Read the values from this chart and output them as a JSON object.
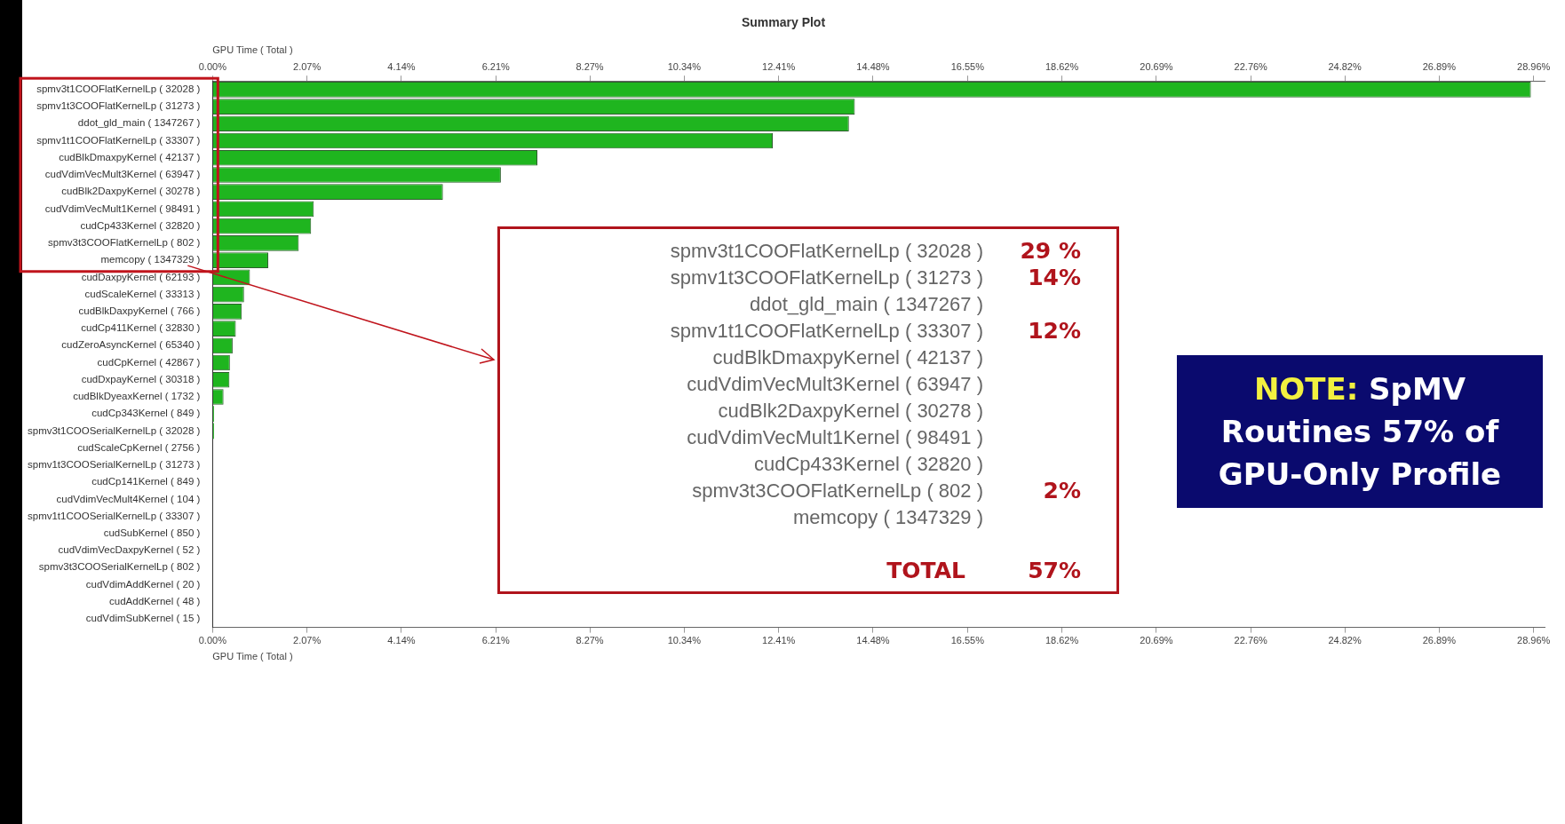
{
  "chart_data": {
    "type": "bar",
    "orientation": "horizontal",
    "title": "Summary Plot",
    "xlabel": "GPU Time ( Total )",
    "x2label": "GPU Time ( Total )",
    "categories": [
      "spmv3t1COOFlatKernelLp ( 32028 )",
      "spmv1t3COOFlatKernelLp ( 31273 )",
      "ddot_gld_main ( 1347267 )",
      "spmv1t1COOFlatKernelLp ( 33307 )",
      "cudBlkDmaxpyKernel ( 42137 )",
      "cudVdimVecMult3Kernel ( 63947 )",
      "cudBlk2DaxpyKernel ( 30278 )",
      "cudVdimVecMult1Kernel ( 98491 )",
      "cudCp433Kernel ( 32820 )",
      "spmv3t3COOFlatKernelLp ( 802 )",
      "memcopy ( 1347329 )",
      "cudDaxpyKernel ( 62193 )",
      "cudScaleKernel ( 33313 )",
      "cudBlkDaxpyKernel ( 766 )",
      "cudCp411Kernel ( 32830 )",
      "cudZeroAsyncKernel ( 65340 )",
      "cudCpKernel ( 42867 )",
      "cudDxpayKernel ( 30318 )",
      "cudBlkDyeaxKernel ( 1732 )",
      "cudCp343Kernel ( 849 )",
      "spmv3t1COOSerialKernelLp ( 32028 )",
      "cudScaleCpKernel ( 2756 )",
      "spmv1t3COOSerialKernelLp ( 31273 )",
      "cudCp141Kernel ( 849 )",
      "cudVdimVecMult4Kernel ( 104 )",
      "spmv1t1COOSerialKernelLp ( 33307 )",
      "cudSubKernel ( 850 )",
      "cudVdimVecDaxpyKernel ( 52 )",
      "spmv3t3COOSerialKernelLp ( 802 )",
      "cudVdimAddKernel ( 20 )",
      "cudAddKernel ( 48 )",
      "cudVdimSubKernel ( 15 )"
    ],
    "values": [
      28.9,
      14.08,
      13.95,
      12.28,
      7.12,
      6.32,
      5.05,
      2.22,
      2.16,
      1.89,
      1.22,
      0.82,
      0.69,
      0.64,
      0.51,
      0.44,
      0.38,
      0.37,
      0.24,
      0.03,
      0.03,
      0,
      0,
      0,
      0,
      0,
      0,
      0,
      0,
      0,
      0,
      0
    ],
    "color": "#1fb51f",
    "xlim": [
      0,
      29.2
    ],
    "xticks": [
      {
        "value": 0,
        "label": "0.00%"
      },
      {
        "value": 2.07,
        "label": "2.07%"
      },
      {
        "value": 4.14,
        "label": "4.14%"
      },
      {
        "value": 6.21,
        "label": "6.21%"
      },
      {
        "value": 8.27,
        "label": "8.27%"
      },
      {
        "value": 10.34,
        "label": "10.34%"
      },
      {
        "value": 12.41,
        "label": "12.41%"
      },
      {
        "value": 14.48,
        "label": "14.48%"
      },
      {
        "value": 16.55,
        "label": "16.55%"
      },
      {
        "value": 18.62,
        "label": "18.62%"
      },
      {
        "value": 20.69,
        "label": "20.69%"
      },
      {
        "value": 22.76,
        "label": "22.76%"
      },
      {
        "value": 24.82,
        "label": "24.82%"
      },
      {
        "value": 26.89,
        "label": "26.89%"
      },
      {
        "value": 28.96,
        "label": "28.96%"
      }
    ],
    "x2lim": [
      0,
      29.2
    ],
    "x2ticks": [
      {
        "value": 0,
        "label": "0.00%"
      },
      {
        "value": 2.07,
        "label": "2.07%"
      },
      {
        "value": 4.14,
        "label": "4.14%"
      },
      {
        "value": 6.21,
        "label": "6.21%"
      },
      {
        "value": 8.27,
        "label": "8.27%"
      },
      {
        "value": 10.34,
        "label": "10.34%"
      },
      {
        "value": 12.41,
        "label": "12.41%"
      },
      {
        "value": 14.48,
        "label": "14.48%"
      },
      {
        "value": 16.55,
        "label": "16.55%"
      },
      {
        "value": 18.62,
        "label": "18.62%"
      },
      {
        "value": 20.69,
        "label": "20.69%"
      },
      {
        "value": 22.76,
        "label": "22.76%"
      },
      {
        "value": 24.82,
        "label": "24.82%"
      },
      {
        "value": 26.89,
        "label": "26.89%"
      },
      {
        "value": 28.96,
        "label": "28.96%"
      }
    ],
    "annotations": [
      "spmv3t1COOFlatKernelLp ( 32028 )",
      "29 %",
      "spmv1t3COOFlatKernelLp ( 31273 )",
      "14%",
      "ddot_gld_main ( 1347267 )",
      "spmv1t1COOFlatKernelLp ( 33307 )",
      "12%",
      "cudBlkDmaxpyKernel ( 42137 )",
      "cudVdimVecMult3Kernel ( 63947 )",
      "cudBlk2DaxpyKernel ( 30278 )",
      "cudVdimVecMult1Kernel ( 98491 )",
      "cudCp433Kernel ( 32820 )",
      "spmv3t3COOFlatKernelLp ( 802 )",
      "2%",
      "memcopy ( 1347329 )",
      "TOTAL",
      "57%",
      "NOTE:",
      "SpMV Routines 57% of GPU-Only Profile"
    ]
  }
}
